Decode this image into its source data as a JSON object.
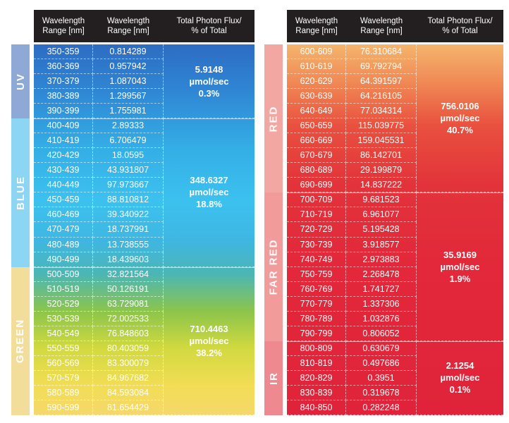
{
  "header": {
    "col1": "Wavelength\nRange [nm]",
    "col2": "Wavelength\nRange [nm]",
    "col3_left": "Total Photon Flux/\n% of Total",
    "col3_right": "Total Photon Flux/\n% of Total"
  },
  "left": {
    "groups": [
      {
        "label": "UV",
        "color": "#8fa9d6",
        "flux": "5.9148",
        "unit": "µmol/sec",
        "percent": "0.3%",
        "rows": [
          [
            "350-359",
            "0.814289"
          ],
          [
            "360-369",
            "0.957942"
          ],
          [
            "370-379",
            "1.087043"
          ],
          [
            "380-389",
            "1.299567"
          ],
          [
            "390-399",
            "1.755981"
          ]
        ]
      },
      {
        "label": "BLUE",
        "color": "#8dd6f3",
        "flux": "348.6327",
        "unit": "µmol/sec",
        "percent": "18.8%",
        "rows": [
          [
            "400-409",
            "2.89333"
          ],
          [
            "410-419",
            "6.706479"
          ],
          [
            "420-429",
            "18.0595"
          ],
          [
            "430-439",
            "43.931807"
          ],
          [
            "440-449",
            "97.973667"
          ],
          [
            "450-459",
            "88.810812"
          ],
          [
            "460-469",
            "39.340922"
          ],
          [
            "470-479",
            "18.737991"
          ],
          [
            "480-489",
            "13.738555"
          ],
          [
            "490-499",
            "18.439603"
          ]
        ]
      },
      {
        "label": "GREEN",
        "color": "#f3dd9a",
        "flux": "710.4463",
        "unit": "µmol/sec",
        "percent": "38.2%",
        "rows": [
          [
            "500-509",
            "32.821564"
          ],
          [
            "510-519",
            "50.126191"
          ],
          [
            "520-529",
            "63.729081"
          ],
          [
            "530-539",
            "72.002533"
          ],
          [
            "540-549",
            "76.848603"
          ],
          [
            "550-559",
            "80.403059"
          ],
          [
            "560-569",
            "83.300079"
          ],
          [
            "570-579",
            "84.967682"
          ],
          [
            "580-589",
            "84.593084"
          ],
          [
            "590-599",
            "81.654429"
          ]
        ]
      }
    ]
  },
  "right": {
    "groups": [
      {
        "label": "RED",
        "color": "#f3a7a2",
        "flux": "756.0106",
        "unit": "µmol/sec",
        "percent": "40.7%",
        "rows": [
          [
            "600-609",
            "76.310684"
          ],
          [
            "610-619",
            "69.792794"
          ],
          [
            "620-629",
            "64.391597"
          ],
          [
            "630-639",
            "64.216105"
          ],
          [
            "640-649",
            "77.034314"
          ],
          [
            "650-659",
            "115.039775"
          ],
          [
            "660-669",
            "159.045531"
          ],
          [
            "670-679",
            "86.142701"
          ],
          [
            "680-689",
            "29.199879"
          ],
          [
            "690-699",
            "14.837222"
          ]
        ]
      },
      {
        "label": "FAR RED",
        "color": "#f29b9b",
        "flux": "35.9169",
        "unit": "µmol/sec",
        "percent": "1.9%",
        "rows": [
          [
            "700-709",
            "9.681523"
          ],
          [
            "710-719",
            "6.961077"
          ],
          [
            "720-729",
            "5.195428"
          ],
          [
            "730-739",
            "3.918577"
          ],
          [
            "740-749",
            "2.973883"
          ],
          [
            "750-759",
            "2.268478"
          ],
          [
            "760-769",
            "1.741727"
          ],
          [
            "770-779",
            "1.337306"
          ],
          [
            "780-789",
            "1.032876"
          ],
          [
            "790-799",
            "0.806052"
          ]
        ]
      },
      {
        "label": "IR",
        "color": "#ee8990",
        "flux": "2.1254",
        "unit": "µmol/sec",
        "percent": "0.1%",
        "rows": [
          [
            "800-809",
            "0.630679"
          ],
          [
            "810-819",
            "0.497686"
          ],
          [
            "820-829",
            "0.3951"
          ],
          [
            "830-839",
            "0.319678"
          ],
          [
            "840-850",
            "0.282248"
          ]
        ]
      }
    ]
  }
}
